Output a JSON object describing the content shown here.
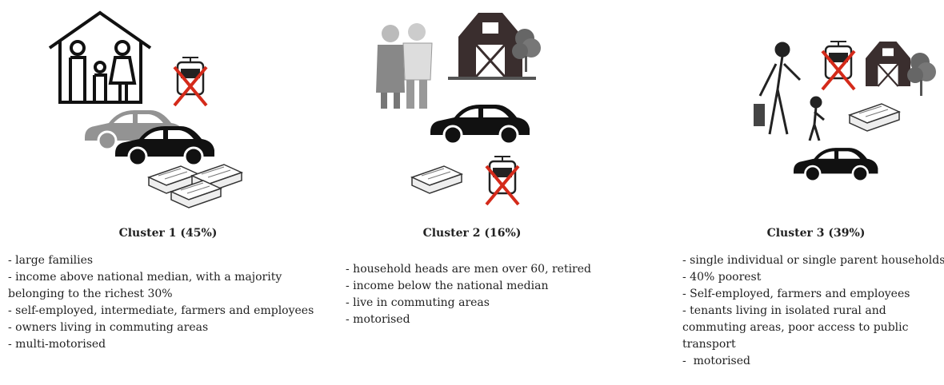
{
  "clusters": [
    {
      "title": "Cluster 1 (45%)",
      "items": [
        "- large families",
        "- income above national median, with a majority belonging to the richest 30%",
        "- self-employed, intermediate, farmers and employees",
        "- owners living in commuting areas",
        "- multi-motorised"
      ]
    },
    {
      "title": "Cluster 2 (16%)",
      "items": [
        "- household heads are men over 60, retired",
        "- income below the national median",
        "- live in commuting areas",
        "- motorised"
      ]
    },
    {
      "title": "Cluster 3 (39%)",
      "items": [
        "- single individual or single parent households",
        "- 40% poorest",
        "- Self-employed, farmers and employees",
        "- tenants living in isolated rural and commuting areas, poor access to public transport",
        "-  motorised"
      ]
    }
  ]
}
